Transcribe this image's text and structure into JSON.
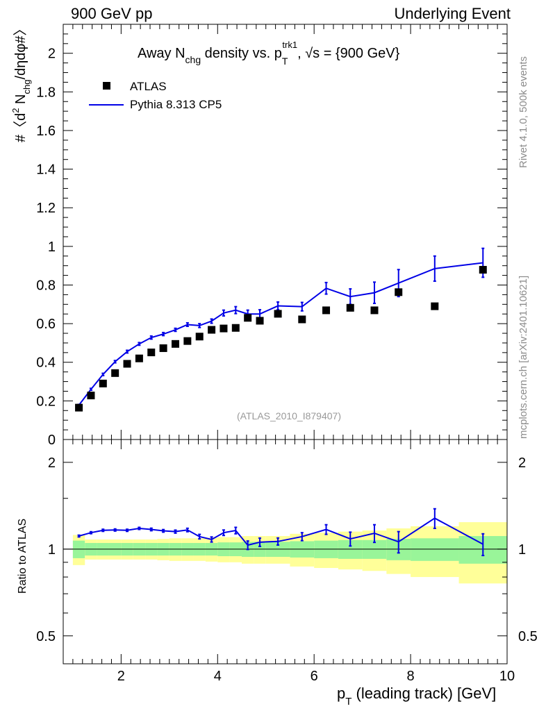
{
  "header": {
    "left": "900 GeV pp",
    "right": "Underlying Event"
  },
  "side_labels": {
    "top": "Rivet 4.1.0,  500k events",
    "bottom": "mcplots.cern.ch [arXiv:2401.10621]"
  },
  "colors": {
    "mc": "#0000e6",
    "data": "#000000",
    "band_inner": "#99f599",
    "band_outer": "#ffff99",
    "watermark": "#999999"
  },
  "chart_data": {
    "type": "scatter",
    "title": "Away N",
    "title_sub": "chg",
    "title_mid": " density vs. p",
    "title_sub2": "T",
    "title_sup2": "trk1",
    "title_end": ", √s = {900 GeV}",
    "ylabel": "#〈d² N_chg/dηdφ#〉",
    "ylabel_pre": "#〈d",
    "ylabel_sup": "2",
    "ylabel_n": " N",
    "ylabel_sub": "chg",
    "ylabel_end": "/dηdφ#〉",
    "xlabel_p": "p",
    "xlabel_sub": "T",
    "xlabel_rest": " (leading track) [GeV]",
    "watermark": "(ATLAS_2010_I879407)",
    "ratio_ylabel": "Ratio to ATLAS",
    "xlim": [
      0.8,
      10.0
    ],
    "ylim": [
      0,
      2.15
    ],
    "ratio_ylim": [
      0.4,
      2.4
    ],
    "xticks": [
      2,
      4,
      6,
      8,
      10
    ],
    "xtick_labels": [
      "2",
      "4",
      "6",
      "8",
      "10"
    ],
    "yticks": [
      0,
      0.2,
      0.4,
      0.6,
      0.8,
      1,
      1.2,
      1.4,
      1.6,
      1.8,
      2
    ],
    "ytick_labels": [
      "0",
      "0.2",
      "0.4",
      "0.6",
      "0.8",
      "1",
      "1.2",
      "1.4",
      "1.6",
      "1.8",
      "2"
    ],
    "ratio_yticks": [
      0.5,
      1,
      2
    ],
    "ratio_ytick_labels": [
      "0.5",
      "1",
      "2"
    ],
    "legend": [
      {
        "label": "ATLAS",
        "kind": "marker"
      },
      {
        "label": "Pythia 8.313 CP5",
        "kind": "line"
      }
    ],
    "legend_position": "top-left",
    "data_series": {
      "name": "ATLAS",
      "x": [
        1.125,
        1.375,
        1.625,
        1.875,
        2.125,
        2.375,
        2.625,
        2.875,
        3.125,
        3.375,
        3.625,
        3.875,
        4.125,
        4.375,
        4.625,
        4.875,
        5.25,
        5.75,
        6.25,
        6.75,
        7.25,
        7.75,
        8.5,
        9.5
      ],
      "y": [
        0.165,
        0.228,
        0.29,
        0.344,
        0.392,
        0.42,
        0.451,
        0.473,
        0.495,
        0.51,
        0.533,
        0.568,
        0.575,
        0.578,
        0.63,
        0.615,
        0.651,
        0.622,
        0.669,
        0.682,
        0.669,
        0.763,
        0.69,
        0.879
      ]
    },
    "mc_series": {
      "name": "Pythia 8.313 CP5",
      "x": [
        1.125,
        1.375,
        1.625,
        1.875,
        2.125,
        2.375,
        2.625,
        2.875,
        3.125,
        3.375,
        3.625,
        3.875,
        4.125,
        4.375,
        4.625,
        4.875,
        5.25,
        5.75,
        6.25,
        6.75,
        7.25,
        7.75,
        8.5,
        9.5
      ],
      "y": [
        0.178,
        0.26,
        0.337,
        0.403,
        0.455,
        0.495,
        0.528,
        0.546,
        0.568,
        0.595,
        0.59,
        0.613,
        0.655,
        0.67,
        0.65,
        0.65,
        0.692,
        0.688,
        0.783,
        0.74,
        0.76,
        0.81,
        0.885,
        0.915
      ],
      "yerr": [
        0.004,
        0.005,
        0.006,
        0.006,
        0.007,
        0.007,
        0.008,
        0.008,
        0.008,
        0.009,
        0.01,
        0.011,
        0.015,
        0.018,
        0.02,
        0.022,
        0.02,
        0.022,
        0.03,
        0.04,
        0.055,
        0.07,
        0.065,
        0.075
      ]
    },
    "ratio_mc": [
      1.11,
      1.14,
      1.162,
      1.165,
      1.162,
      1.18,
      1.17,
      1.157,
      1.15,
      1.165,
      1.105,
      1.08,
      1.14,
      1.16,
      1.032,
      1.057,
      1.063,
      1.105,
      1.17,
      1.085,
      1.135,
      1.06,
      1.28,
      1.04
    ],
    "ratio_mc_err": [
      0.008,
      0.009,
      0.01,
      0.01,
      0.01,
      0.01,
      0.012,
      0.012,
      0.014,
      0.016,
      0.02,
      0.022,
      0.025,
      0.03,
      0.035,
      0.035,
      0.03,
      0.035,
      0.045,
      0.06,
      0.08,
      0.09,
      0.1,
      0.09
    ],
    "band_edges": [
      1.0,
      1.25,
      1.5,
      1.75,
      2.0,
      2.25,
      2.5,
      2.75,
      3.0,
      3.25,
      3.5,
      3.75,
      4.0,
      4.25,
      4.5,
      4.75,
      5.0,
      5.5,
      6.0,
      6.5,
      7.0,
      7.5,
      8.0,
      9.0,
      10.0
    ],
    "band_inner": [
      0.07,
      0.05,
      0.05,
      0.05,
      0.05,
      0.05,
      0.05,
      0.05,
      0.05,
      0.05,
      0.05,
      0.05,
      0.055,
      0.055,
      0.06,
      0.06,
      0.06,
      0.065,
      0.07,
      0.075,
      0.075,
      0.085,
      0.09,
      0.11,
      0.11
    ],
    "band_outer": [
      0.12,
      0.08,
      0.08,
      0.08,
      0.08,
      0.08,
      0.08,
      0.085,
      0.09,
      0.09,
      0.09,
      0.095,
      0.1,
      0.1,
      0.11,
      0.11,
      0.11,
      0.13,
      0.14,
      0.15,
      0.16,
      0.18,
      0.2,
      0.24,
      0.24
    ]
  }
}
